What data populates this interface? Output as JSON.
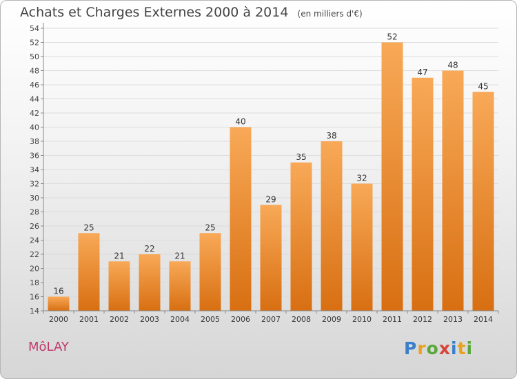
{
  "header": {
    "title": "Achats et Charges Externes 2000 à 2014",
    "unit": "(en milliers d'€)"
  },
  "commune": "MôLAY",
  "logo": {
    "letters": [
      "P",
      "r",
      "o",
      "x",
      "i",
      "t",
      "i"
    ],
    "colors": [
      "#3a7fc9",
      "#e8a21e",
      "#5aa83c",
      "#d6443b",
      "#3a7fc9",
      "#e8a21e",
      "#5aa83c"
    ]
  },
  "colors": {
    "bar": "#ef8a2e",
    "bar_light": "#f8a957",
    "bar_dark": "#d86f12",
    "title": "#444444",
    "commune": "#c0396a"
  },
  "chart_data": {
    "type": "bar",
    "title": "Achats et Charges Externes 2000 à 2014",
    "subtitle": "(en milliers d'€)",
    "categories": [
      "2000",
      "2001",
      "2002",
      "2003",
      "2004",
      "2005",
      "2006",
      "2007",
      "2008",
      "2009",
      "2010",
      "2011",
      "2012",
      "2013",
      "2014"
    ],
    "values": [
      16,
      25,
      21,
      22,
      21,
      25,
      40,
      29,
      35,
      38,
      32,
      52,
      47,
      48,
      45
    ],
    "ylim": [
      14,
      54
    ],
    "yticks": [
      14,
      16,
      18,
      20,
      22,
      24,
      26,
      28,
      30,
      32,
      34,
      36,
      38,
      40,
      42,
      44,
      46,
      48,
      50,
      52,
      54
    ],
    "grid": "horizontal",
    "data_labels": true
  }
}
